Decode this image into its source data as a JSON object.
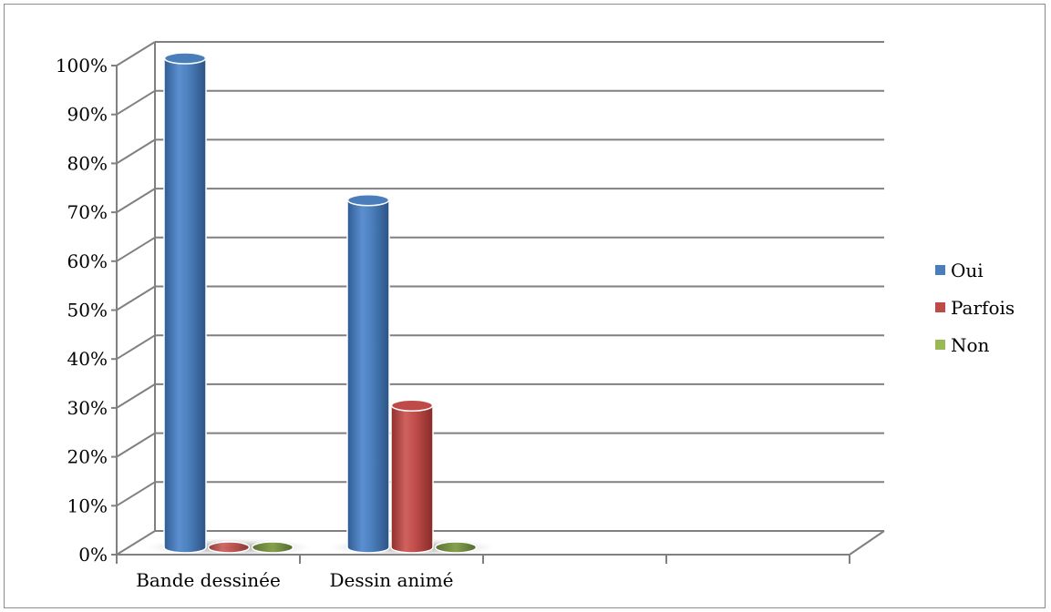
{
  "chart_data": {
    "type": "bar",
    "categories": [
      "Bande dessinée",
      "Dessin animé",
      "",
      ""
    ],
    "series": [
      {
        "name": "Oui",
        "values": [
          100,
          71,
          null,
          null
        ],
        "color": "#4a7ebb"
      },
      {
        "name": "Parfois",
        "values": [
          0,
          29,
          null,
          null
        ],
        "color": "#be4b48"
      },
      {
        "name": "Non",
        "values": [
          0,
          0,
          null,
          null
        ],
        "color": "#98b954"
      }
    ],
    "y_ticks": [
      "0%",
      "10%",
      "20%",
      "30%",
      "40%",
      "50%",
      "60%",
      "70%",
      "80%",
      "90%",
      "100%"
    ],
    "ylim": [
      0,
      100
    ],
    "y_unit": "%",
    "grid": true,
    "style": "3d-cylinder",
    "legend_position": "right",
    "title": "",
    "xlabel": "",
    "ylabel": ""
  }
}
